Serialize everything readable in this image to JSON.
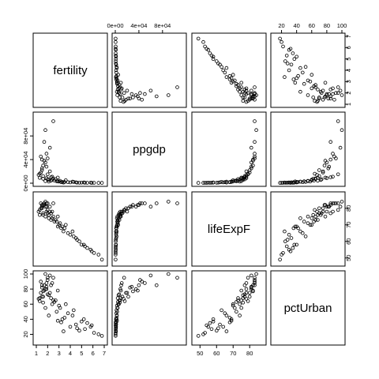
{
  "chart_data": {
    "type": "scatter",
    "variables": [
      {
        "name": "fertility",
        "range": [
          1,
          7
        ]
      },
      {
        "name": "ppgdp",
        "range": [
          0,
          115000
        ]
      },
      {
        "name": "lifeExpF",
        "range": [
          47,
          88
        ]
      },
      {
        "name": "pctUrban",
        "range": [
          10,
          100
        ]
      }
    ],
    "ticks": {
      "fertility": {
        "values": [
          1,
          2,
          3,
          4,
          5,
          6,
          7
        ],
        "labels": [
          "1",
          "2",
          "3",
          "4",
          "5",
          "6",
          "7"
        ]
      },
      "ppgdp": {
        "values": [
          0,
          40000,
          80000
        ],
        "labels": [
          "0e+00",
          "4e+04",
          "8e+04"
        ]
      },
      "lifeExpF": {
        "values": [
          50,
          60,
          70,
          80
        ],
        "labels": [
          "50",
          "60",
          "70",
          "80"
        ]
      },
      "pctUrban": {
        "values": [
          20,
          40,
          60,
          80,
          100
        ],
        "labels": [
          "20",
          "40",
          "60",
          "80",
          "100"
        ]
      }
    },
    "points": [
      [
        2.2,
        20000,
        78,
        75
      ],
      [
        1.8,
        35000,
        81,
        80
      ],
      [
        6.5,
        600,
        52,
        20
      ],
      [
        5.8,
        900,
        55,
        30
      ],
      [
        4.2,
        2500,
        66,
        45
      ],
      [
        2.5,
        8000,
        75,
        65
      ],
      [
        1.5,
        40000,
        82,
        85
      ],
      [
        1.4,
        45000,
        83,
        90
      ],
      [
        3.1,
        4000,
        71,
        55
      ],
      [
        2.9,
        3000,
        69,
        38
      ],
      [
        5.2,
        1200,
        58,
        40
      ],
      [
        6.8,
        500,
        49,
        18
      ],
      [
        1.6,
        12000,
        77,
        70
      ],
      [
        1.3,
        9000,
        76,
        68
      ],
      [
        2.0,
        15000,
        79,
        95
      ],
      [
        2.4,
        6000,
        74,
        60
      ],
      [
        3.5,
        2000,
        68,
        42
      ],
      [
        4.8,
        800,
        60,
        25
      ],
      [
        5.5,
        700,
        56,
        35
      ],
      [
        1.9,
        50000,
        83,
        88
      ],
      [
        1.7,
        38000,
        82,
        78
      ],
      [
        2.1,
        5500,
        76,
        72
      ],
      [
        2.7,
        7000,
        73,
        65
      ],
      [
        3.8,
        1800,
        65,
        48
      ],
      [
        4.5,
        1500,
        62,
        33
      ],
      [
        1.5,
        25000,
        81,
        82
      ],
      [
        2.3,
        10000,
        77,
        85
      ],
      [
        1.8,
        3500,
        75,
        55
      ],
      [
        3.0,
        2800,
        70,
        58
      ],
      [
        6.1,
        650,
        53,
        22
      ],
      [
        5.0,
        1000,
        58,
        37
      ],
      [
        2.6,
        4500,
        72,
        63
      ],
      [
        1.4,
        18000,
        80,
        75
      ],
      [
        1.6,
        30000,
        82,
        77
      ],
      [
        2.0,
        42000,
        83,
        92
      ],
      [
        1.9,
        8500,
        78,
        80
      ],
      [
        2.8,
        3200,
        72,
        50
      ],
      [
        3.3,
        2200,
        69,
        40
      ],
      [
        4.0,
        1300,
        64,
        30
      ],
      [
        1.2,
        14000,
        78,
        67
      ],
      [
        1.5,
        22000,
        80,
        70
      ],
      [
        2.2,
        60000,
        81,
        98
      ],
      [
        1.8,
        90000,
        84,
        100
      ],
      [
        2.5,
        105000,
        83,
        95
      ],
      [
        1.7,
        70000,
        83,
        85
      ],
      [
        3.6,
        5000,
        70,
        60
      ],
      [
        2.1,
        2700,
        74,
        45
      ],
      [
        4.6,
        900,
        61,
        28
      ],
      [
        5.9,
        550,
        54,
        32
      ],
      [
        3.2,
        1600,
        68,
        36
      ],
      [
        1.6,
        7500,
        76,
        62
      ],
      [
        2.4,
        11000,
        78,
        88
      ],
      [
        2.0,
        6500,
        77,
        73
      ],
      [
        1.3,
        16000,
        79,
        64
      ],
      [
        2.9,
        9500,
        75,
        78
      ],
      [
        4.3,
        2100,
        63,
        52
      ],
      [
        1.9,
        28000,
        81,
        83
      ],
      [
        2.3,
        4200,
        73,
        68
      ],
      [
        3.4,
        1100,
        66,
        24
      ],
      [
        5.3,
        750,
        57,
        27
      ]
    ]
  }
}
